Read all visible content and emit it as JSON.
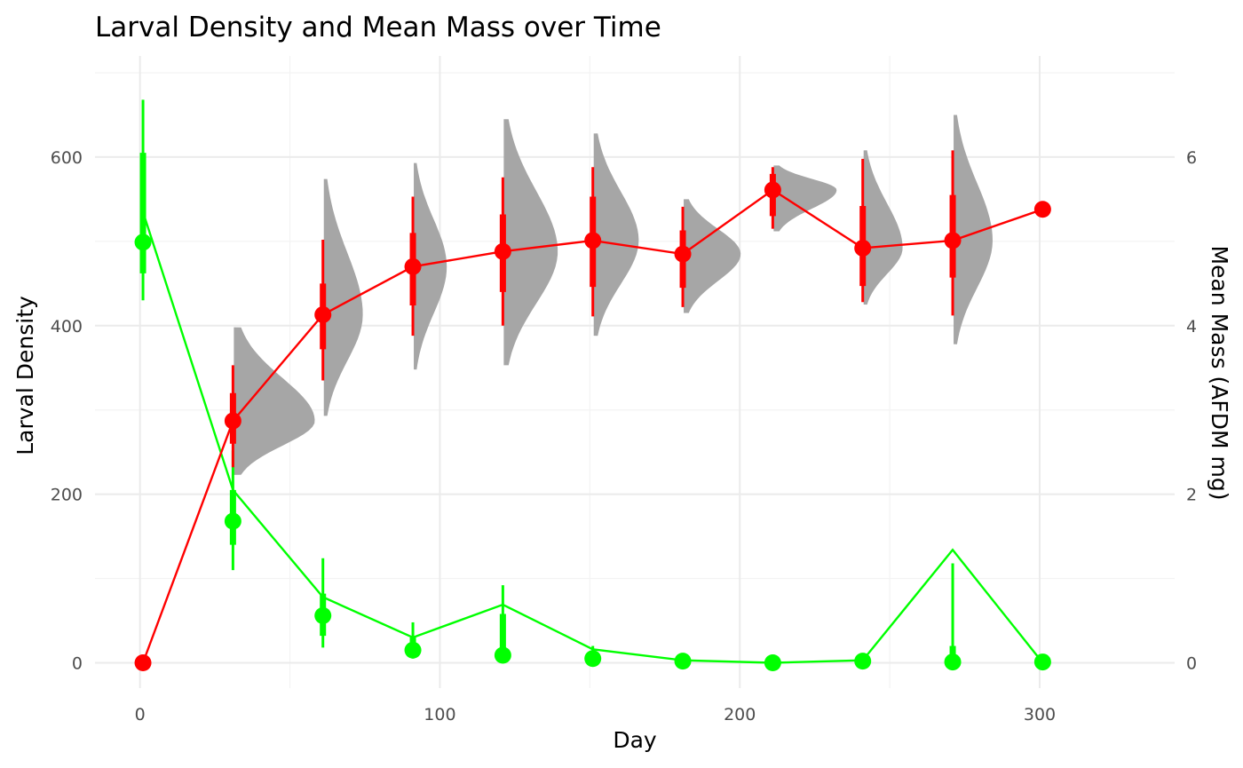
{
  "chart_data": {
    "type": "line",
    "title": "Larval Density and Mean Mass over Time",
    "xlabel": "Day",
    "ylabel": "Larval Density",
    "y2label": "Mean Mass (AFDM mg)",
    "xlim": [
      -15,
      345
    ],
    "ylim": [
      -30,
      720
    ],
    "y2lim": [
      -0.3,
      7.2
    ],
    "x_ticks": [
      0,
      100,
      200,
      300
    ],
    "y_ticks": [
      0,
      200,
      400,
      600
    ],
    "y2_ticks": [
      0,
      2,
      4,
      6
    ],
    "grid": true,
    "colors": {
      "density": "#00ff00",
      "mass": "#ff0000",
      "violin": "#a6a6a6"
    },
    "series": [
      {
        "axis": "left",
        "color": "#00ff00",
        "line": {
          "x": [
            1,
            31,
            61,
            91,
            121,
            151,
            181,
            211,
            241,
            271,
            301
          ],
          "y": [
            535,
            205,
            78,
            30,
            69,
            16,
            3,
            0,
            3,
            134,
            0
          ]
        },
        "points": [
          {
            "x": 1,
            "y": 499,
            "lo": 430,
            "hi": 668,
            "ilo": 462,
            "ihi": 605
          },
          {
            "x": 31,
            "y": 168,
            "lo": 110,
            "hi": 252,
            "ilo": 140,
            "ihi": 205
          },
          {
            "x": 61,
            "y": 56,
            "lo": 18,
            "hi": 124,
            "ilo": 32,
            "ihi": 82
          },
          {
            "x": 91,
            "y": 15,
            "lo": 5,
            "hi": 48,
            "ilo": 8,
            "ihi": 30
          },
          {
            "x": 121,
            "y": 9,
            "lo": 0,
            "hi": 92,
            "ilo": 3,
            "ihi": 58
          },
          {
            "x": 151,
            "y": 5,
            "lo": 0,
            "hi": 20,
            "ilo": 2,
            "ihi": 12
          },
          {
            "x": 181,
            "y": 2,
            "lo": 0,
            "hi": 5,
            "ilo": 0,
            "ihi": 3
          },
          {
            "x": 211,
            "y": 0,
            "lo": 0,
            "hi": 2,
            "ilo": 0,
            "ihi": 1
          },
          {
            "x": 241,
            "y": 2,
            "lo": 0,
            "hi": 5,
            "ilo": 0,
            "ihi": 3
          },
          {
            "x": 271,
            "y": 1,
            "lo": 0,
            "hi": 118,
            "ilo": 0,
            "ihi": 20
          },
          {
            "x": 301,
            "y": 1,
            "lo": 0,
            "hi": 3,
            "ilo": 0,
            "ihi": 2
          }
        ]
      },
      {
        "axis": "right",
        "color": "#ff0000",
        "line": {
          "x": [
            1,
            31,
            61,
            91,
            121,
            151,
            181,
            211,
            241,
            271,
            301
          ],
          "y": [
            0,
            2.87,
            4.13,
            4.7,
            4.88,
            5.01,
            4.85,
            5.61,
            4.92,
            5.01,
            5.38
          ]
        },
        "points": [
          {
            "x": 1,
            "y": 0,
            "lo": 0,
            "hi": 0,
            "ilo": 0,
            "ihi": 0
          },
          {
            "x": 31,
            "y": 2.87,
            "lo": 2.32,
            "hi": 3.53,
            "ilo": 2.6,
            "ihi": 3.2
          },
          {
            "x": 61,
            "y": 4.13,
            "lo": 3.35,
            "hi": 5.02,
            "ilo": 3.72,
            "ihi": 4.5
          },
          {
            "x": 91,
            "y": 4.7,
            "lo": 3.88,
            "hi": 5.53,
            "ilo": 4.24,
            "ihi": 5.1
          },
          {
            "x": 121,
            "y": 4.88,
            "lo": 4.0,
            "hi": 5.76,
            "ilo": 4.4,
            "ihi": 5.32
          },
          {
            "x": 151,
            "y": 5.01,
            "lo": 4.11,
            "hi": 5.88,
            "ilo": 4.46,
            "ihi": 5.53
          },
          {
            "x": 181,
            "y": 4.85,
            "lo": 4.22,
            "hi": 5.41,
            "ilo": 4.45,
            "ihi": 5.13
          },
          {
            "x": 211,
            "y": 5.61,
            "lo": 5.15,
            "hi": 5.88,
            "ilo": 5.3,
            "ihi": 5.8
          },
          {
            "x": 241,
            "y": 4.92,
            "lo": 4.28,
            "hi": 5.98,
            "ilo": 4.47,
            "ihi": 5.42
          },
          {
            "x": 271,
            "y": 5.01,
            "lo": 4.12,
            "hi": 6.08,
            "ilo": 4.57,
            "ihi": 5.55
          },
          {
            "x": 301,
            "y": 5.38,
            "lo": 5.38,
            "hi": 5.38,
            "ilo": 5.38,
            "ihi": 5.38
          }
        ]
      }
    ],
    "mass_violins": [
      {
        "x": 31,
        "lo": 2.23,
        "hi": 3.98,
        "mode": 2.87,
        "w": 27
      },
      {
        "x": 61,
        "lo": 2.93,
        "hi": 5.74,
        "mode": 4.13,
        "w": 13
      },
      {
        "x": 91,
        "lo": 3.48,
        "hi": 5.93,
        "mode": 4.7,
        "w": 11
      },
      {
        "x": 121,
        "lo": 3.53,
        "hi": 6.45,
        "mode": 4.88,
        "w": 18
      },
      {
        "x": 151,
        "lo": 3.88,
        "hi": 6.28,
        "mode": 5.01,
        "w": 15
      },
      {
        "x": 181,
        "lo": 4.15,
        "hi": 5.5,
        "mode": 4.85,
        "w": 19
      },
      {
        "x": 211,
        "lo": 5.12,
        "hi": 5.9,
        "mode": 5.61,
        "w": 21
      },
      {
        "x": 241,
        "lo": 4.25,
        "hi": 6.08,
        "mode": 4.92,
        "w": 13
      },
      {
        "x": 271,
        "lo": 3.78,
        "hi": 6.5,
        "mode": 5.01,
        "w": 13
      }
    ]
  }
}
